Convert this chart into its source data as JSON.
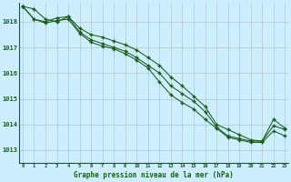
{
  "title": "Graphe pression niveau de la mer (hPa)",
  "background_color": "#cceeff",
  "grid_color": "#b0c8c8",
  "line_color": "#1a5c1a",
  "ylim": [
    1012.5,
    1018.75
  ],
  "yticks": [
    1013,
    1014,
    1015,
    1016,
    1017,
    1018
  ],
  "xlim": [
    -0.3,
    23.3
  ],
  "series1_x": [
    0,
    1,
    2,
    3,
    4,
    5,
    6,
    7,
    8,
    9,
    10,
    11,
    12,
    13,
    14,
    15,
    16,
    17,
    18,
    19,
    20,
    21,
    22,
    23
  ],
  "series1_y": [
    1018.6,
    1018.5,
    1018.1,
    1018.0,
    1018.2,
    1017.75,
    1017.5,
    1017.4,
    1017.25,
    1017.1,
    1016.9,
    1016.6,
    1016.3,
    1015.85,
    1015.5,
    1015.1,
    1014.7,
    1014.0,
    1013.8,
    1013.6,
    1013.4,
    1013.35,
    1014.2,
    1013.85
  ],
  "series2_x": [
    0,
    1,
    2,
    3,
    4,
    5,
    6,
    7,
    8,
    9,
    10,
    11,
    12,
    13,
    14,
    15,
    16,
    17,
    18,
    19,
    20,
    21,
    22,
    23
  ],
  "series2_y": [
    1018.6,
    1018.1,
    1018.0,
    1018.15,
    1018.2,
    1017.6,
    1017.3,
    1017.15,
    1017.0,
    1016.85,
    1016.6,
    1016.3,
    1016.0,
    1015.5,
    1015.2,
    1014.9,
    1014.5,
    1013.9,
    1013.55,
    1013.45,
    1013.35,
    1013.35,
    1013.95,
    1013.8
  ],
  "series3_x": [
    0,
    1,
    2,
    3,
    4,
    5,
    6,
    7,
    8,
    9,
    10,
    11,
    12,
    13,
    14,
    15,
    16,
    17,
    18,
    19,
    20,
    21,
    22,
    23
  ],
  "series3_y": [
    1018.6,
    1018.1,
    1017.95,
    1018.05,
    1018.1,
    1017.55,
    1017.2,
    1017.05,
    1016.95,
    1016.75,
    1016.5,
    1016.2,
    1015.65,
    1015.15,
    1014.85,
    1014.6,
    1014.2,
    1013.85,
    1013.5,
    1013.4,
    1013.3,
    1013.3,
    1013.75,
    1013.55
  ]
}
